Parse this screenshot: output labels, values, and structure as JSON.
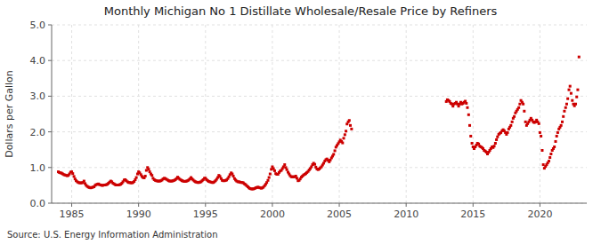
{
  "chart_data": {
    "type": "scatter",
    "title": "Monthly Michigan No 1 Distillate Wholesale/Resale Price by Refiners",
    "ylabel": "Dollars per Gallon",
    "source": "Source: U.S. Energy Information Administration",
    "color": "#cc0000",
    "marker": "square",
    "grid": true,
    "xlim": [
      1983.5,
      2023.5
    ],
    "ylim": [
      0.0,
      5.0
    ],
    "xticks": [
      1985,
      1990,
      1995,
      2000,
      2005,
      2010,
      2015,
      2020
    ],
    "yticks": [
      {
        "value": 0.0,
        "label": "0.0"
      },
      {
        "value": 1.0,
        "label": "1.0"
      },
      {
        "value": 2.0,
        "label": "2.0"
      },
      {
        "value": 3.0,
        "label": "3.0"
      },
      {
        "value": 4.0,
        "label": "4.0"
      },
      {
        "value": 5.0,
        "label": "5.0"
      }
    ],
    "x": [
      1984.0,
      1984.08,
      1984.17,
      1984.25,
      1984.33,
      1984.42,
      1984.5,
      1984.58,
      1984.67,
      1984.75,
      1984.83,
      1984.92,
      1985.0,
      1985.08,
      1985.17,
      1985.25,
      1985.33,
      1985.42,
      1985.5,
      1985.58,
      1985.67,
      1985.75,
      1985.83,
      1985.92,
      1986.0,
      1986.08,
      1986.17,
      1986.25,
      1986.33,
      1986.42,
      1986.5,
      1986.58,
      1986.67,
      1986.75,
      1986.83,
      1986.92,
      1987.0,
      1987.08,
      1987.17,
      1987.25,
      1987.33,
      1987.42,
      1987.5,
      1987.58,
      1987.67,
      1987.75,
      1987.83,
      1987.92,
      1988.0,
      1988.08,
      1988.17,
      1988.25,
      1988.33,
      1988.42,
      1988.5,
      1988.58,
      1988.67,
      1988.75,
      1988.83,
      1988.92,
      1989.0,
      1989.08,
      1989.17,
      1989.25,
      1989.33,
      1989.42,
      1989.5,
      1989.58,
      1989.67,
      1989.75,
      1989.83,
      1989.92,
      1990.0,
      1990.08,
      1990.17,
      1990.25,
      1990.33,
      1990.42,
      1990.5,
      1990.58,
      1990.67,
      1990.75,
      1990.83,
      1990.92,
      1991.0,
      1991.08,
      1991.17,
      1991.25,
      1991.33,
      1991.42,
      1991.5,
      1991.58,
      1991.67,
      1991.75,
      1991.83,
      1991.92,
      1992.0,
      1992.08,
      1992.17,
      1992.25,
      1992.33,
      1992.42,
      1992.5,
      1992.58,
      1992.67,
      1992.75,
      1992.83,
      1992.92,
      1993.0,
      1993.08,
      1993.17,
      1993.25,
      1993.33,
      1993.42,
      1993.5,
      1993.58,
      1993.67,
      1993.75,
      1993.83,
      1993.92,
      1994.0,
      1994.08,
      1994.17,
      1994.25,
      1994.33,
      1994.42,
      1994.5,
      1994.58,
      1994.67,
      1994.75,
      1994.83,
      1994.92,
      1995.0,
      1995.08,
      1995.17,
      1995.25,
      1995.33,
      1995.42,
      1995.5,
      1995.58,
      1995.67,
      1995.75,
      1995.83,
      1995.92,
      1996.0,
      1996.08,
      1996.17,
      1996.25,
      1996.33,
      1996.42,
      1996.5,
      1996.58,
      1996.67,
      1996.75,
      1996.83,
      1996.92,
      1997.0,
      1997.08,
      1997.17,
      1997.25,
      1997.33,
      1997.42,
      1997.5,
      1997.58,
      1997.67,
      1997.75,
      1997.83,
      1997.92,
      1998.0,
      1998.08,
      1998.17,
      1998.25,
      1998.33,
      1998.42,
      1998.5,
      1998.58,
      1998.67,
      1998.75,
      1998.83,
      1998.92,
      1999.0,
      1999.08,
      1999.17,
      1999.25,
      1999.33,
      1999.42,
      1999.5,
      1999.58,
      1999.67,
      1999.75,
      1999.83,
      1999.92,
      2000.0,
      2000.08,
      2000.17,
      2000.25,
      2000.33,
      2000.42,
      2000.5,
      2000.58,
      2000.67,
      2000.75,
      2000.83,
      2000.92,
      2001.0,
      2001.08,
      2001.17,
      2001.25,
      2001.33,
      2001.42,
      2001.5,
      2001.58,
      2001.67,
      2001.75,
      2001.83,
      2001.92,
      2002.0,
      2002.08,
      2002.17,
      2002.25,
      2002.33,
      2002.42,
      2002.5,
      2002.58,
      2002.67,
      2002.75,
      2002.83,
      2002.92,
      2003.0,
      2003.08,
      2003.17,
      2003.25,
      2003.33,
      2003.42,
      2003.5,
      2003.58,
      2003.67,
      2003.75,
      2003.83,
      2003.92,
      2004.0,
      2004.08,
      2004.17,
      2004.25,
      2004.33,
      2004.42,
      2004.5,
      2004.58,
      2004.67,
      2004.75,
      2004.83,
      2004.92,
      2005.0,
      2005.08,
      2005.17,
      2005.25,
      2005.33,
      2005.42,
      2005.5,
      2005.58,
      2005.67,
      2005.75,
      2005.83,
      2005.92,
      2013.0,
      2013.08,
      2013.17,
      2013.25,
      2013.33,
      2013.42,
      2013.5,
      2013.58,
      2013.67,
      2013.75,
      2013.83,
      2013.92,
      2014.0,
      2014.08,
      2014.17,
      2014.25,
      2014.33,
      2014.42,
      2014.5,
      2014.58,
      2014.67,
      2014.75,
      2014.83,
      2014.92,
      2015.0,
      2015.08,
      2015.17,
      2015.25,
      2015.33,
      2015.42,
      2015.5,
      2015.58,
      2015.67,
      2015.75,
      2015.83,
      2015.92,
      2016.0,
      2016.08,
      2016.17,
      2016.25,
      2016.33,
      2016.42,
      2016.5,
      2016.58,
      2016.67,
      2016.75,
      2016.83,
      2016.92,
      2017.0,
      2017.08,
      2017.17,
      2017.25,
      2017.33,
      2017.42,
      2017.5,
      2017.58,
      2017.67,
      2017.75,
      2017.83,
      2017.92,
      2018.0,
      2018.08,
      2018.17,
      2018.25,
      2018.33,
      2018.42,
      2018.5,
      2018.58,
      2018.67,
      2018.75,
      2018.83,
      2018.92,
      2019.0,
      2019.08,
      2019.17,
      2019.25,
      2019.33,
      2019.42,
      2019.5,
      2019.58,
      2019.67,
      2019.75,
      2019.83,
      2019.92,
      2020.0,
      2020.08,
      2020.17,
      2020.25,
      2020.33,
      2020.42,
      2020.5,
      2020.58,
      2020.67,
      2020.75,
      2020.83,
      2020.92,
      2021.0,
      2021.08,
      2021.17,
      2021.25,
      2021.33,
      2021.42,
      2021.5,
      2021.58,
      2021.67,
      2021.75,
      2021.83,
      2021.92,
      2022.0,
      2022.08,
      2022.17,
      2022.25,
      2022.33,
      2022.42,
      2022.5,
      2022.58,
      2022.67,
      2022.75,
      2022.83,
      2022.92
    ],
    "values": [
      0.88,
      0.86,
      0.85,
      0.84,
      0.82,
      0.8,
      0.79,
      0.78,
      0.77,
      0.78,
      0.82,
      0.87,
      0.88,
      0.83,
      0.75,
      0.68,
      0.63,
      0.6,
      0.58,
      0.57,
      0.57,
      0.57,
      0.58,
      0.62,
      0.55,
      0.5,
      0.47,
      0.45,
      0.44,
      0.43,
      0.44,
      0.45,
      0.46,
      0.5,
      0.52,
      0.53,
      0.54,
      0.52,
      0.51,
      0.5,
      0.5,
      0.51,
      0.51,
      0.52,
      0.53,
      0.56,
      0.59,
      0.62,
      0.6,
      0.56,
      0.54,
      0.52,
      0.51,
      0.51,
      0.51,
      0.52,
      0.53,
      0.56,
      0.6,
      0.65,
      0.66,
      0.63,
      0.6,
      0.58,
      0.58,
      0.57,
      0.57,
      0.58,
      0.61,
      0.66,
      0.72,
      0.82,
      0.88,
      0.85,
      0.8,
      0.75,
      0.72,
      0.71,
      0.76,
      0.92,
      1.0,
      0.95,
      0.88,
      0.82,
      0.78,
      0.7,
      0.66,
      0.64,
      0.63,
      0.62,
      0.62,
      0.62,
      0.63,
      0.65,
      0.68,
      0.7,
      0.69,
      0.67,
      0.65,
      0.63,
      0.62,
      0.62,
      0.62,
      0.63,
      0.64,
      0.66,
      0.69,
      0.73,
      0.7,
      0.67,
      0.65,
      0.63,
      0.62,
      0.61,
      0.61,
      0.62,
      0.63,
      0.65,
      0.68,
      0.72,
      0.68,
      0.65,
      0.62,
      0.6,
      0.59,
      0.58,
      0.58,
      0.59,
      0.6,
      0.63,
      0.66,
      0.7,
      0.7,
      0.66,
      0.63,
      0.61,
      0.6,
      0.59,
      0.58,
      0.58,
      0.6,
      0.63,
      0.67,
      0.72,
      0.78,
      0.75,
      0.69,
      0.64,
      0.63,
      0.63,
      0.64,
      0.65,
      0.69,
      0.74,
      0.8,
      0.85,
      0.82,
      0.76,
      0.69,
      0.65,
      0.62,
      0.6,
      0.6,
      0.59,
      0.58,
      0.58,
      0.57,
      0.54,
      0.52,
      0.49,
      0.46,
      0.43,
      0.41,
      0.4,
      0.4,
      0.4,
      0.41,
      0.43,
      0.44,
      0.45,
      0.44,
      0.43,
      0.42,
      0.43,
      0.45,
      0.49,
      0.53,
      0.58,
      0.64,
      0.72,
      0.82,
      0.95,
      1.02,
      0.97,
      0.91,
      0.83,
      0.81,
      0.81,
      0.86,
      0.9,
      0.92,
      0.97,
      1.02,
      1.08,
      1.0,
      0.94,
      0.87,
      0.82,
      0.77,
      0.74,
      0.74,
      0.74,
      0.74,
      0.76,
      0.7,
      0.63,
      0.64,
      0.68,
      0.73,
      0.76,
      0.79,
      0.81,
      0.83,
      0.86,
      0.89,
      0.93,
      0.97,
      1.02,
      1.08,
      1.12,
      1.09,
      1.01,
      0.96,
      0.94,
      0.96,
      0.99,
      1.02,
      1.07,
      1.12,
      1.18,
      1.22,
      1.24,
      1.2,
      1.16,
      1.21,
      1.27,
      1.32,
      1.37,
      1.47,
      1.57,
      1.62,
      1.67,
      1.72,
      1.77,
      1.73,
      1.69,
      1.82,
      1.92,
      2.02,
      2.22,
      2.28,
      2.32,
      2.18,
      2.08,
      2.85,
      2.9,
      2.88,
      2.85,
      2.8,
      2.78,
      2.72,
      2.78,
      2.8,
      2.83,
      2.78,
      2.72,
      2.78,
      2.83,
      2.78,
      2.8,
      2.83,
      2.86,
      2.8,
      2.68,
      2.48,
      2.18,
      1.88,
      1.68,
      1.58,
      1.53,
      1.58,
      1.63,
      1.68,
      1.66,
      1.6,
      1.58,
      1.56,
      1.53,
      1.48,
      1.46,
      1.43,
      1.38,
      1.43,
      1.48,
      1.53,
      1.58,
      1.56,
      1.6,
      1.68,
      1.78,
      1.86,
      1.93,
      1.96,
      1.98,
      2.03,
      2.06,
      2.03,
      1.98,
      1.93,
      1.98,
      2.08,
      2.13,
      2.18,
      2.28,
      2.38,
      2.43,
      2.53,
      2.58,
      2.63,
      2.68,
      2.78,
      2.88,
      2.83,
      2.78,
      2.58,
      2.28,
      2.18,
      2.23,
      2.28,
      2.33,
      2.38,
      2.33,
      2.28,
      2.26,
      2.28,
      2.33,
      2.28,
      2.23,
      1.98,
      1.88,
      1.48,
      1.08,
      0.98,
      1.03,
      1.08,
      1.13,
      1.18,
      1.28,
      1.38,
      1.48,
      1.53,
      1.58,
      1.73,
      1.88,
      1.98,
      2.08,
      2.13,
      2.18,
      2.28,
      2.43,
      2.58,
      2.68,
      2.78,
      2.93,
      3.18,
      3.28,
      3.08,
      2.88,
      2.78,
      2.73,
      2.78,
      2.98,
      3.18,
      4.1
    ]
  }
}
